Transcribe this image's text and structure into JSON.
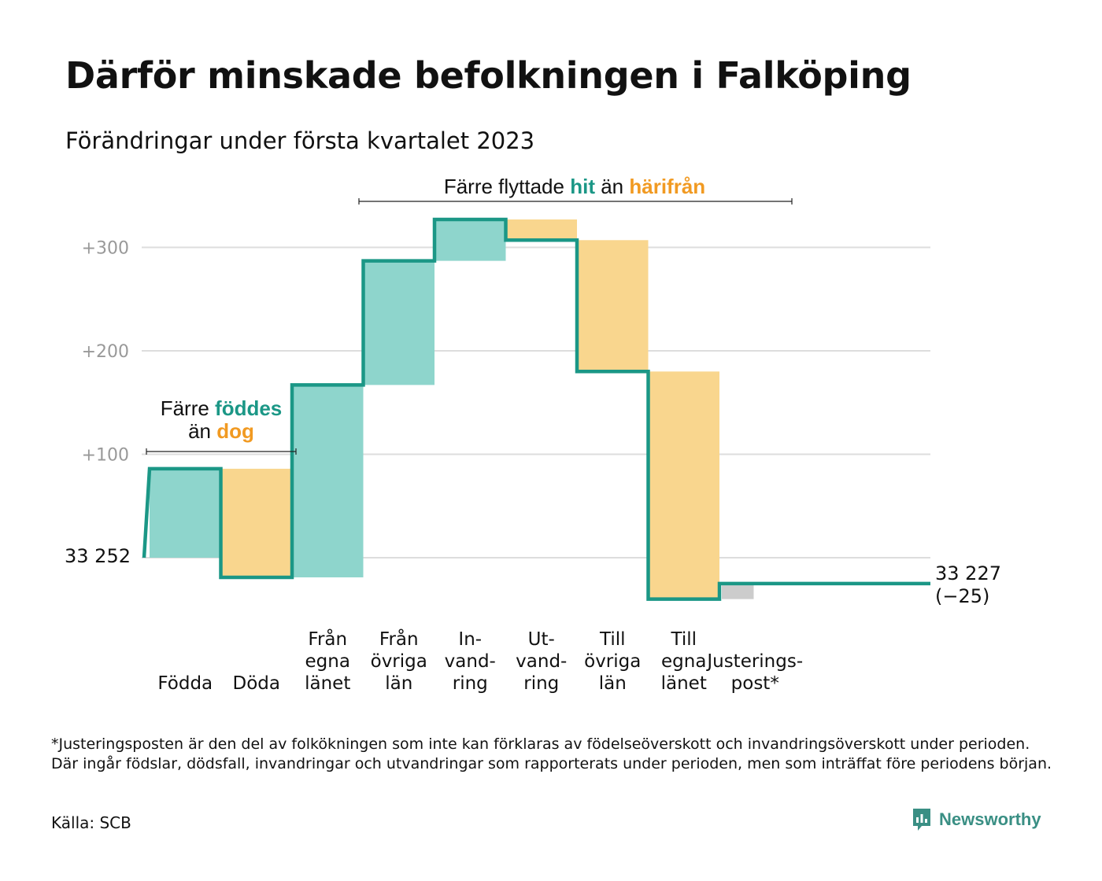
{
  "header": {
    "title": "Därför minskade befolkningen i Falköping",
    "subtitle": "Förändringar under första kvartalet 2023"
  },
  "colors": {
    "increase": "#8ed5cc",
    "decrease": "#f9d68e",
    "adjustment": "#cccccc",
    "line": "#1b9786",
    "accent_hit": "#1b9786",
    "accent_harifran": "#f19a22",
    "grid": "#dddddd",
    "tick_text": "#999999"
  },
  "annotations": {
    "births": {
      "line1_a": "Färre ",
      "line1_b": "föddes",
      "line2_a": "än ",
      "line2_b": "dog"
    },
    "migration": {
      "a": "Färre flyttade ",
      "b": "hit",
      "c": " än ",
      "d": "härifrån"
    }
  },
  "chart_data": {
    "type": "waterfall",
    "title": "Därför minskade befolkningen i Falköping",
    "subtitle": "Förändringar under första kvartalet 2023",
    "start_label": "33 252",
    "end_label": "33 227",
    "end_change_label": "(−25)",
    "start_value": 33252,
    "end_value": 33227,
    "yticks": [
      {
        "value": 100,
        "label": "+100"
      },
      {
        "value": 200,
        "label": "+200"
      },
      {
        "value": 300,
        "label": "+300"
      }
    ],
    "ylim": [
      -40,
      330
    ],
    "categories": [
      {
        "label": [
          "Födda"
        ],
        "change": 86,
        "kind": "increase"
      },
      {
        "label": [
          "Döda"
        ],
        "change": -105,
        "kind": "decrease"
      },
      {
        "label": [
          "Från",
          "egna",
          "länet"
        ],
        "change": 186,
        "kind": "increase"
      },
      {
        "label": [
          "Från",
          "övriga",
          "län"
        ],
        "change": 120,
        "kind": "increase"
      },
      {
        "label": [
          "In-",
          "vand-",
          "ring"
        ],
        "change": 40,
        "kind": "increase"
      },
      {
        "label": [
          "Ut-",
          "vand-",
          "ring"
        ],
        "change": -20,
        "kind": "decrease"
      },
      {
        "label": [
          "Till",
          "övriga",
          "län"
        ],
        "change": -127,
        "kind": "decrease"
      },
      {
        "label": [
          "Till",
          "egna",
          "länet"
        ],
        "change": -220,
        "kind": "decrease"
      },
      {
        "label": [
          "Justerings-",
          "post*"
        ],
        "change": 15,
        "kind": "adjustment"
      }
    ]
  },
  "footer": {
    "footnote": "*Justeringsposten är den del av folkökningen som inte kan förklaras av födelseöverskott och invandringsöverskott under perioden. Där ingår födslar, dödsfall, invandringar och utvandringar som rapporterats under perioden, men som inträffat före periodens början.",
    "source": "Källa: SCB",
    "brand": "Newsworthy",
    "brand_icon": "bar-chart-speech-bubble-icon"
  }
}
